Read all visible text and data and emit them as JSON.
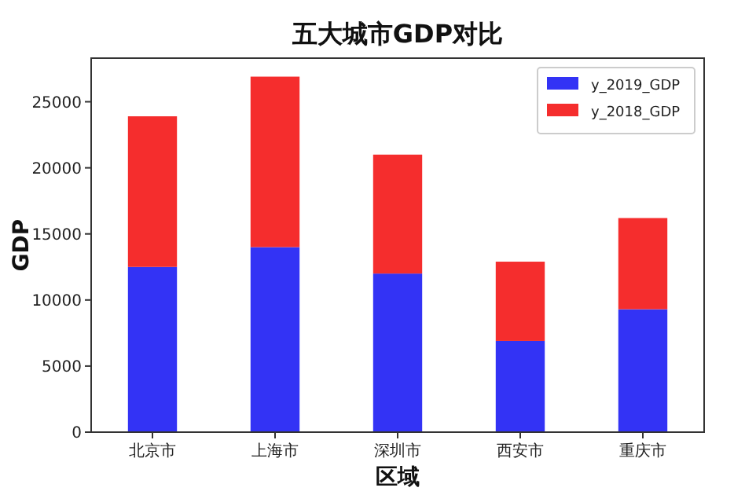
{
  "chart_data": {
    "type": "bar",
    "title": "五大城市GDP对比",
    "xlabel": "区域",
    "ylabel": "GDP",
    "categories": [
      "北京市",
      "上海市",
      "深圳市",
      "西安市",
      "重庆市"
    ],
    "series": [
      {
        "name": "y_2019_GDP",
        "color": "#3333f5",
        "values": [
          12500,
          14000,
          12000,
          6900,
          9300
        ]
      },
      {
        "name": "y_2018_GDP",
        "color": "#f52d2d",
        "values": [
          11400,
          12900,
          9000,
          6000,
          6900
        ]
      }
    ],
    "stacked": true,
    "ylim": [
      0,
      28300
    ],
    "yticks": [
      0,
      5000,
      10000,
      15000,
      20000,
      25000
    ],
    "legend": "top right"
  }
}
